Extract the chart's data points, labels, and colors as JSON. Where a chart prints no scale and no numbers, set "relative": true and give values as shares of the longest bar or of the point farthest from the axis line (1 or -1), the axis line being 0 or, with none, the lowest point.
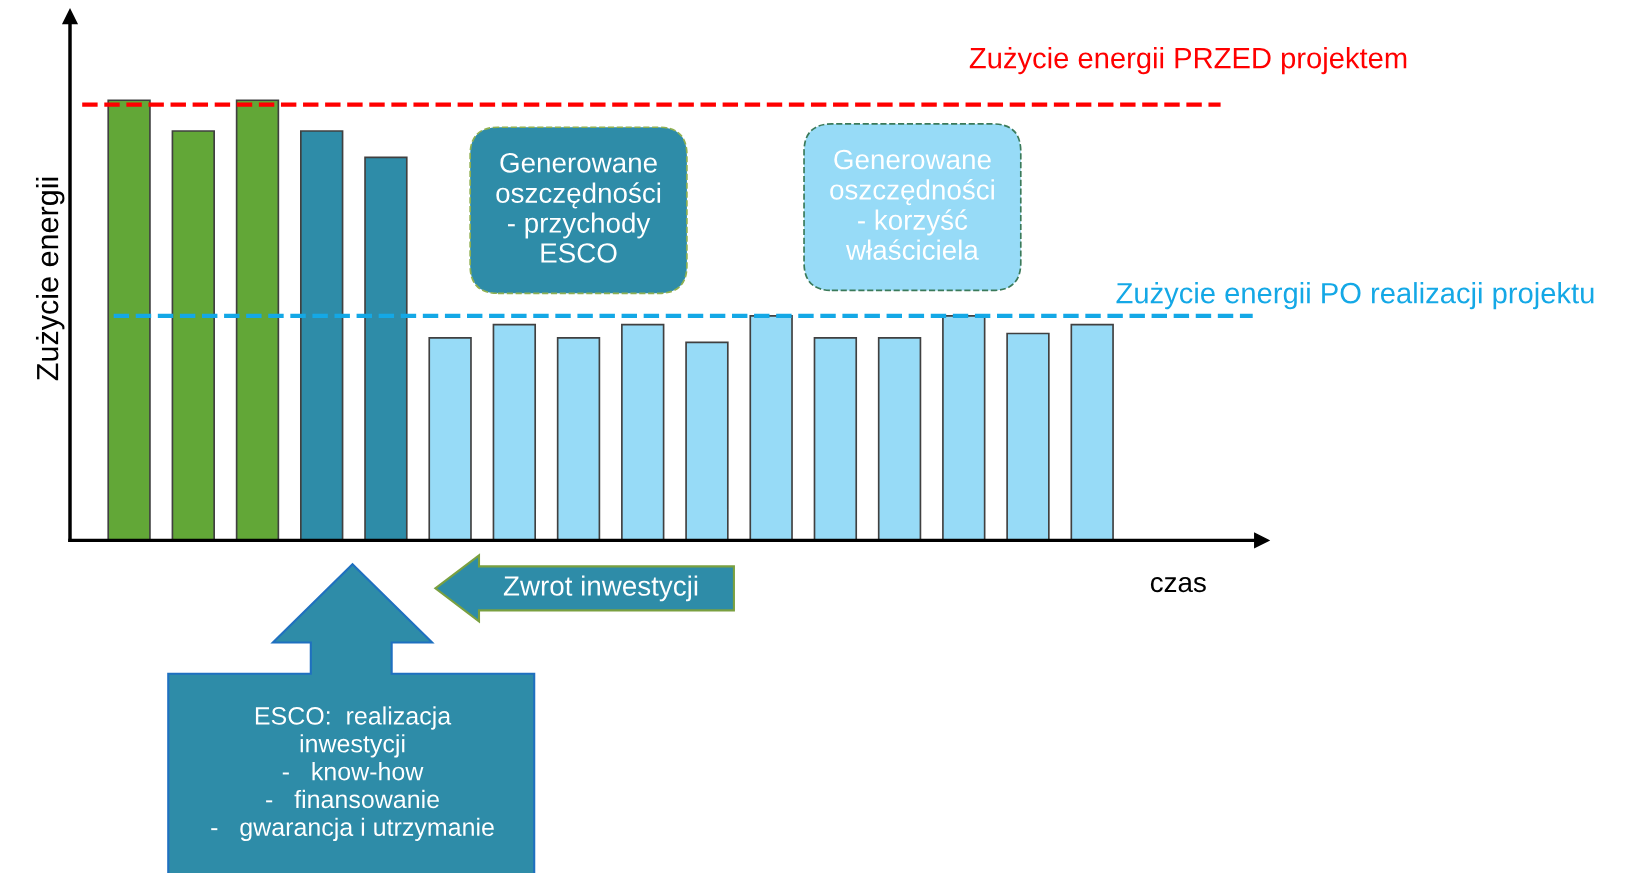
{
  "chart_data": {
    "type": "bar",
    "relative": true,
    "xlabel": "czas",
    "ylabel": "Zużycie energii",
    "categories": [
      null,
      null,
      null,
      null,
      null,
      null,
      null,
      null,
      null,
      null,
      null,
      null,
      null,
      null,
      null,
      null
    ],
    "values": [
      1,
      0.93,
      1,
      0.93,
      0.87,
      0.46,
      0.49,
      0.46,
      0.49,
      0.45,
      0.51,
      0.46,
      0.46,
      0.51,
      0.47,
      0.49
    ],
    "colors": [
      "#62a737",
      "#62a737",
      "#62a737",
      "#2e8ca8",
      "#2e8ca8",
      "#97dbf7",
      "#97dbf7",
      "#97dbf7",
      "#97dbf7",
      "#97dbf7",
      "#97dbf7",
      "#97dbf7",
      "#97dbf7",
      "#97dbf7",
      "#97dbf7",
      "#97dbf7"
    ],
    "ref_lines": [
      {
        "axis": "y",
        "value": 0.99,
        "label": "Zużycie energii PRZED projektem",
        "color": "#ff0000",
        "line_style": "dashed"
      },
      {
        "axis": "y",
        "value": 0.51,
        "label": "Zużycie energii PO realizacji projektu",
        "color": "#14a8e6",
        "line_style": "dashed"
      }
    ],
    "annotations": [
      "Generowane\noszczędności\n- przychody\nESCO",
      "Generowane\noszczędności\n- korzyść\nwłaściciela",
      "Zwrot inwestycji",
      "ESCO:  realizacja\ninwestycji\n-   know-how\n-   finansowanie\n-   gwarancja i utrzymanie"
    ],
    "grid": false,
    "legend": false
  }
}
